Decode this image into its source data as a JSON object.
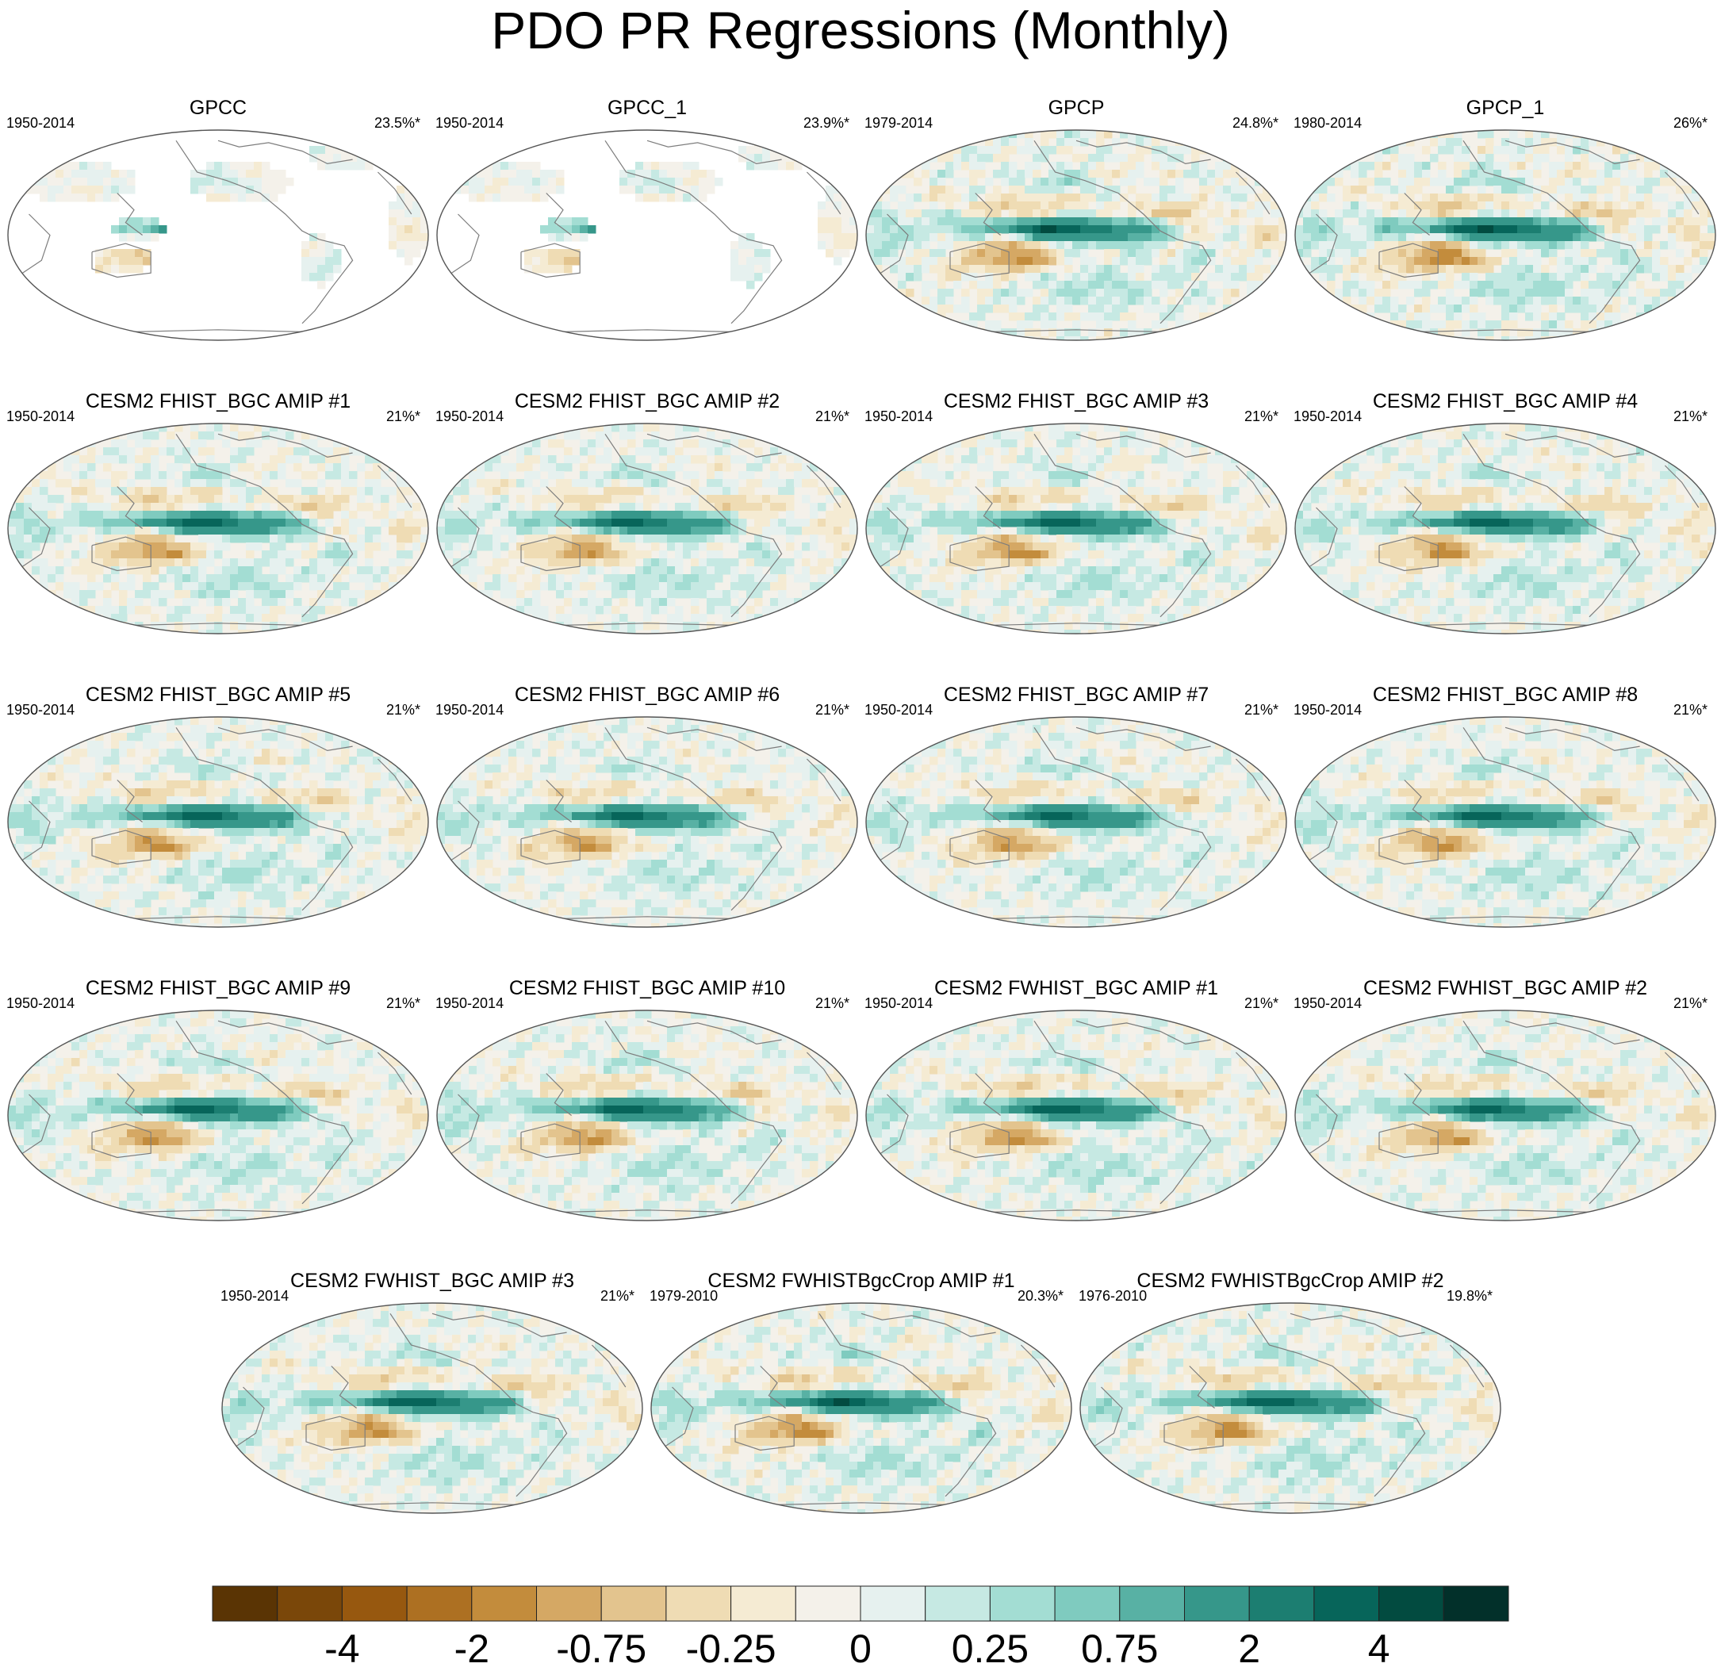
{
  "chart_data": {
    "type": "map",
    "title": "PDO PR Regressions (Monthly)",
    "panels": [
      {
        "title": "GPCC",
        "years": "1950-2014",
        "pct": "23.5%*",
        "coverage": "land",
        "amp": 0.55
      },
      {
        "title": "GPCC_1",
        "years": "1950-2014",
        "pct": "23.9%*",
        "coverage": "land",
        "amp": 0.55
      },
      {
        "title": "GPCP",
        "years": "1979-2014",
        "pct": "24.8%*",
        "coverage": "global",
        "amp": 1.0
      },
      {
        "title": "GPCP_1",
        "years": "1980-2014",
        "pct": "26%*",
        "coverage": "global",
        "amp": 1.05
      },
      {
        "title": "CESM2 FHIST_BGC AMIP #1",
        "years": "1950-2014",
        "pct": "21%*",
        "coverage": "global",
        "amp": 0.9
      },
      {
        "title": "CESM2 FHIST_BGC AMIP #2",
        "years": "1950-2014",
        "pct": "21%*",
        "coverage": "global",
        "amp": 0.85
      },
      {
        "title": "CESM2 FHIST_BGC AMIP #3",
        "years": "1950-2014",
        "pct": "21%*",
        "coverage": "global",
        "amp": 0.9
      },
      {
        "title": "CESM2 FHIST_BGC AMIP #4",
        "years": "1950-2014",
        "pct": "21%*",
        "coverage": "global",
        "amp": 0.9
      },
      {
        "title": "CESM2 FHIST_BGC AMIP #5",
        "years": "1950-2014",
        "pct": "21%*",
        "coverage": "global",
        "amp": 0.9
      },
      {
        "title": "CESM2 FHIST_BGC AMIP #6",
        "years": "1950-2014",
        "pct": "21%*",
        "coverage": "global",
        "amp": 0.85
      },
      {
        "title": "CESM2 FHIST_BGC AMIP #7",
        "years": "1950-2014",
        "pct": "21%*",
        "coverage": "global",
        "amp": 0.85
      },
      {
        "title": "CESM2 FHIST_BGC AMIP #8",
        "years": "1950-2014",
        "pct": "21%*",
        "coverage": "global",
        "amp": 0.9
      },
      {
        "title": "CESM2 FHIST_BGC AMIP #9",
        "years": "1950-2014",
        "pct": "21%*",
        "coverage": "global",
        "amp": 0.9
      },
      {
        "title": "CESM2 FHIST_BGC AMIP #10",
        "years": "1950-2014",
        "pct": "21%*",
        "coverage": "global",
        "amp": 0.9
      },
      {
        "title": "CESM2 FWHIST_BGC AMIP #1",
        "years": "1950-2014",
        "pct": "21%*",
        "coverage": "global",
        "amp": 0.9
      },
      {
        "title": "CESM2 FWHIST_BGC AMIP #2",
        "years": "1950-2014",
        "pct": "21%*",
        "coverage": "global",
        "amp": 0.85
      },
      {
        "title": "CESM2 FWHIST_BGC AMIP #3",
        "years": "1950-2014",
        "pct": "21%*",
        "coverage": "global",
        "amp": 0.9
      },
      {
        "title": "CESM2 FWHISTBgcCrop AMIP #1",
        "years": "1979-2010",
        "pct": "20.3%*",
        "coverage": "global",
        "amp": 1.0
      },
      {
        "title": "CESM2 FWHISTBgcCrop AMIP #2",
        "years": "1976-2010",
        "pct": "19.8%*",
        "coverage": "global",
        "amp": 0.95
      }
    ],
    "colorbar": {
      "levels": [
        -5,
        -4,
        -3,
        -2,
        -1,
        -0.75,
        -0.5,
        -0.25,
        -0.1,
        0,
        0.1,
        0.25,
        0.5,
        0.75,
        1,
        2,
        3,
        4,
        5
      ],
      "colors": [
        "#5a3404",
        "#7a4709",
        "#97580f",
        "#ad7022",
        "#c38c3c",
        "#d5a864",
        "#e3c48e",
        "#efdcb4",
        "#f5ebd3",
        "#f4f1ea",
        "#e6f1ef",
        "#c6e9e3",
        "#a3ddd3",
        "#7fcbbf",
        "#58b1a4",
        "#36978a",
        "#1c7e71",
        "#07655a",
        "#024b40",
        "#02302a"
      ],
      "tick_labels": [
        "-4",
        "-2",
        "-0.75",
        "-0.25",
        "0",
        "0.25",
        "0.75",
        "2",
        "4"
      ]
    }
  }
}
